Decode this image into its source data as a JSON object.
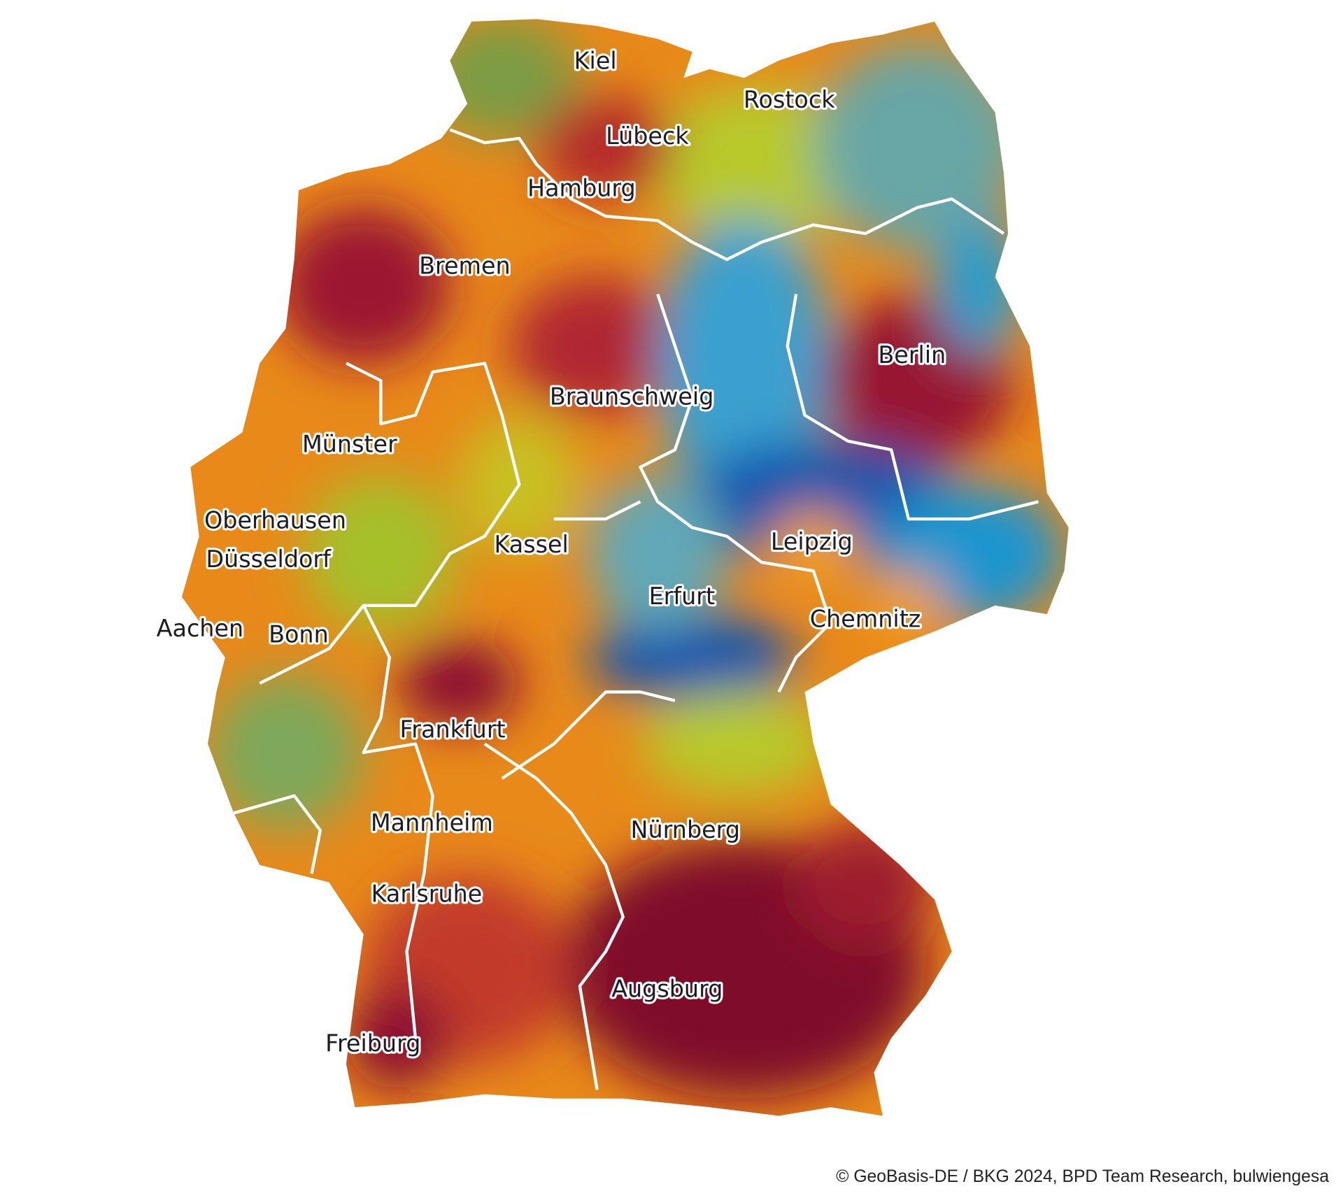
{
  "labels": [
    "Kiel",
    "Rostock",
    "Lübeck",
    "Hamburg",
    "Bremen",
    "Berlin",
    "Braunschweig",
    "Münster",
    "Oberhausen",
    "Düsseldorf",
    "Kassel",
    "Leipzig",
    "Erfurt",
    "Aachen",
    "Bonn",
    "Chemnitz",
    "Frankfurt",
    "Mannheim",
    "Nürnberg",
    "Karlsruhe",
    "Augsburg",
    "Freiburg"
  ],
  "credit": "© GeoBasis-DE / BKG 2024, BPD Team Research, bulwiengesa"
}
